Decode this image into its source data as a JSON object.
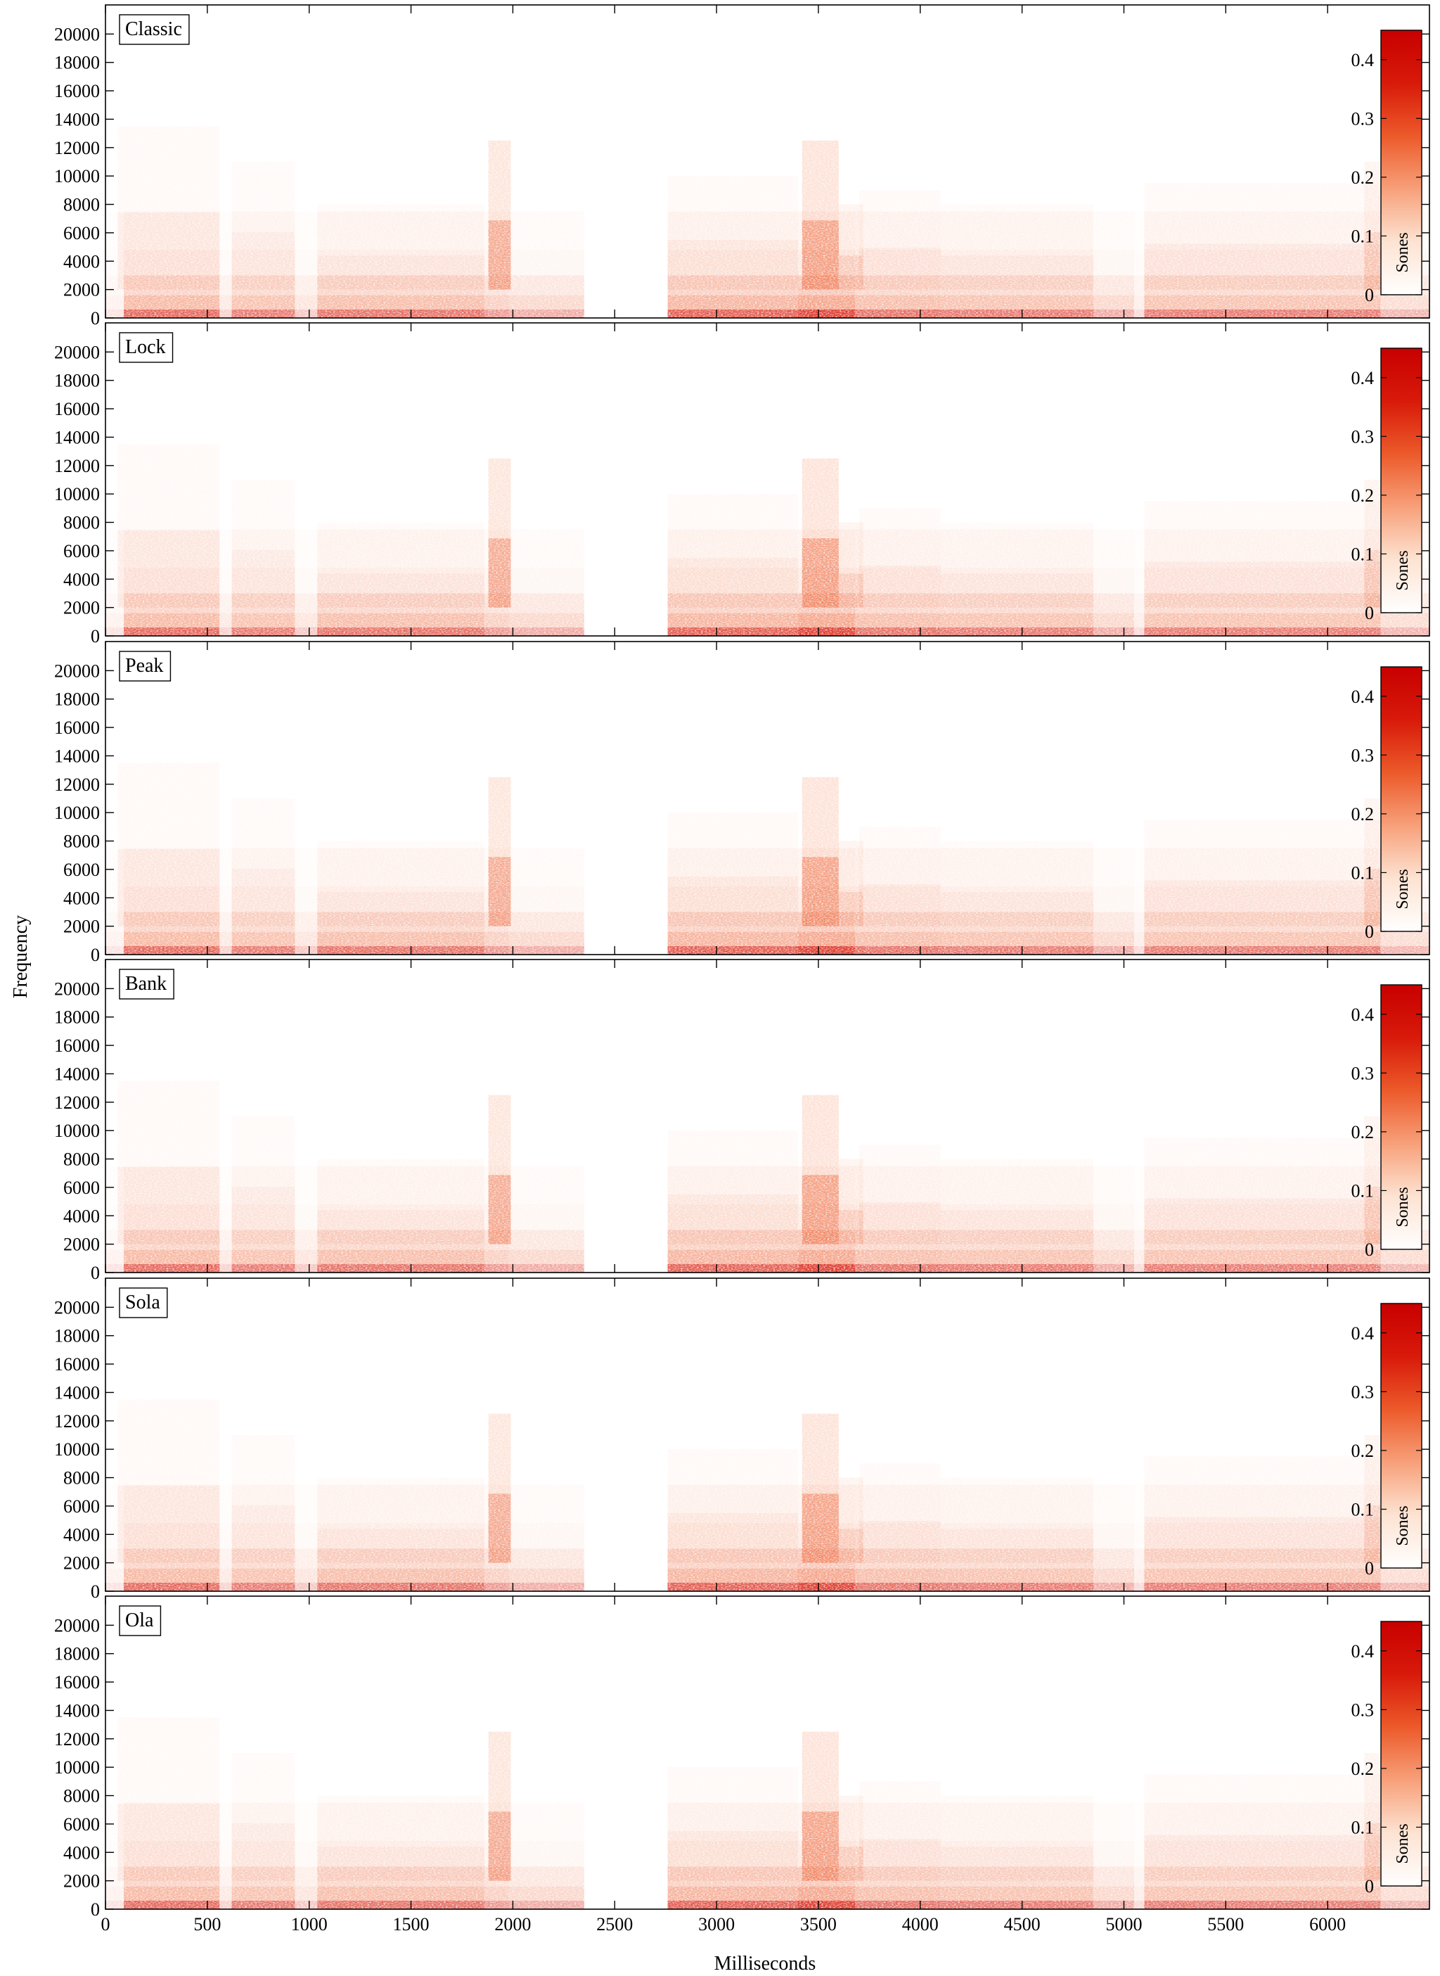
{
  "figure": {
    "ylabel": "Frequency",
    "xlabel": "Milliseconds"
  },
  "chart_data": [
    {
      "type": "heatmap",
      "title": "Classic",
      "xlim": [
        0,
        6500
      ],
      "ylim": [
        0,
        22050
      ],
      "x_ticks": [
        0,
        500,
        1000,
        1500,
        2000,
        2500,
        3000,
        3500,
        4000,
        4500,
        5000,
        5500,
        6000
      ],
      "y_ticks": [
        0,
        2000,
        4000,
        6000,
        8000,
        10000,
        12000,
        14000,
        16000,
        18000,
        20000
      ],
      "colorbar": {
        "label": "Sones",
        "range": [
          0,
          0.45
        ],
        "ticks": [
          0,
          0.1,
          0.2,
          0.3,
          0.4
        ]
      }
    },
    {
      "type": "heatmap",
      "title": "Lock",
      "xlim": [
        0,
        6500
      ],
      "ylim": [
        0,
        22050
      ],
      "x_ticks": [
        0,
        500,
        1000,
        1500,
        2000,
        2500,
        3000,
        3500,
        4000,
        4500,
        5000,
        5500,
        6000
      ],
      "y_ticks": [
        0,
        2000,
        4000,
        6000,
        8000,
        10000,
        12000,
        14000,
        16000,
        18000,
        20000
      ],
      "colorbar": {
        "label": "Sones",
        "range": [
          0,
          0.45
        ],
        "ticks": [
          0,
          0.1,
          0.2,
          0.3,
          0.4
        ]
      }
    },
    {
      "type": "heatmap",
      "title": "Peak",
      "xlim": [
        0,
        6500
      ],
      "ylim": [
        0,
        22050
      ],
      "x_ticks": [
        0,
        500,
        1000,
        1500,
        2000,
        2500,
        3000,
        3500,
        4000,
        4500,
        5000,
        5500,
        6000
      ],
      "y_ticks": [
        0,
        2000,
        4000,
        6000,
        8000,
        10000,
        12000,
        14000,
        16000,
        18000,
        20000
      ],
      "colorbar": {
        "label": "Sones",
        "range": [
          0,
          0.45
        ],
        "ticks": [
          0,
          0.1,
          0.2,
          0.3,
          0.4
        ]
      }
    },
    {
      "type": "heatmap",
      "title": "Bank",
      "xlim": [
        0,
        6500
      ],
      "ylim": [
        0,
        22050
      ],
      "x_ticks": [
        0,
        500,
        1000,
        1500,
        2000,
        2500,
        3000,
        3500,
        4000,
        4500,
        5000,
        5500,
        6000
      ],
      "y_ticks": [
        0,
        2000,
        4000,
        6000,
        8000,
        10000,
        12000,
        14000,
        16000,
        18000,
        20000
      ],
      "colorbar": {
        "label": "Sones",
        "range": [
          0,
          0.45
        ],
        "ticks": [
          0,
          0.1,
          0.2,
          0.3,
          0.4
        ]
      }
    },
    {
      "type": "heatmap",
      "title": "Sola",
      "xlim": [
        0,
        6500
      ],
      "ylim": [
        0,
        22050
      ],
      "x_ticks": [
        0,
        500,
        1000,
        1500,
        2000,
        2500,
        3000,
        3500,
        4000,
        4500,
        5000,
        5500,
        6000
      ],
      "y_ticks": [
        0,
        2000,
        4000,
        6000,
        8000,
        10000,
        12000,
        14000,
        16000,
        18000,
        20000
      ],
      "colorbar": {
        "label": "Sones",
        "range": [
          0,
          0.45
        ],
        "ticks": [
          0,
          0.1,
          0.2,
          0.3,
          0.4
        ]
      }
    },
    {
      "type": "heatmap",
      "title": "Ola",
      "xlim": [
        0,
        6500
      ],
      "ylim": [
        0,
        22050
      ],
      "x_ticks": [
        0,
        500,
        1000,
        1500,
        2000,
        2500,
        3000,
        3500,
        4000,
        4500,
        5000,
        5500,
        6000
      ],
      "y_ticks": [
        0,
        2000,
        4000,
        6000,
        8000,
        10000,
        12000,
        14000,
        16000,
        18000,
        20000
      ],
      "colorbar": {
        "label": "Sones",
        "range": [
          0,
          0.45
        ],
        "ticks": [
          0,
          0.1,
          0.2,
          0.3,
          0.4
        ]
      }
    }
  ],
  "colors": {
    "colormap": [
      "#ffffff",
      "#fde3d2",
      "#f7a07a",
      "#ec5a2a",
      "#d81a0a",
      "#c80000"
    ],
    "axis": "#000000"
  }
}
